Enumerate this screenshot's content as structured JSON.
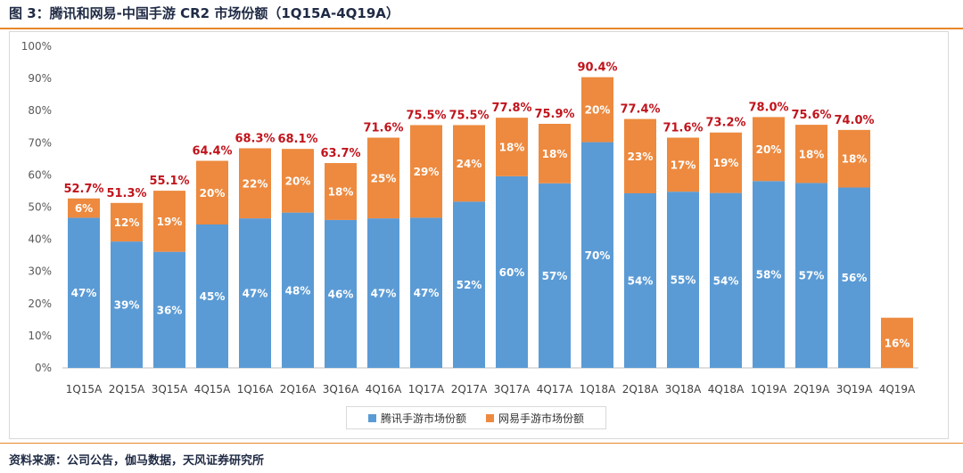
{
  "figure": {
    "title": "图 3：腾讯和网易-中国手游 CR2 市场份额（1Q15A-4Q19A）",
    "source": "资料来源：公司公告，伽马数据，天风证券研究所"
  },
  "colors": {
    "tencent": "#5b9bd5",
    "netease": "#ed8a3f",
    "total_label": "#c0141c",
    "accent_rule": "#e8872d"
  },
  "chart_data": {
    "type": "bar",
    "stacked": true,
    "title": "",
    "xlabel": "",
    "ylabel": "",
    "ylim": [
      0,
      100
    ],
    "ytick_step": 10,
    "ytick_format": "{v}%",
    "grid": false,
    "legend_position": "bottom",
    "categories": [
      "1Q15A",
      "2Q15A",
      "3Q15A",
      "4Q15A",
      "1Q16A",
      "2Q16A",
      "3Q16A",
      "4Q16A",
      "1Q17A",
      "2Q17A",
      "3Q17A",
      "4Q17A",
      "1Q18A",
      "2Q18A",
      "3Q18A",
      "4Q18A",
      "1Q19A",
      "2Q19A",
      "3Q19A",
      "4Q19A"
    ],
    "series": [
      {
        "name": "腾讯手游市场份额",
        "values": [
          46.7,
          39.3,
          36.1,
          44.6,
          46.5,
          48.3,
          46.0,
          46.5,
          46.7,
          51.7,
          59.6,
          57.4,
          70.2,
          54.3,
          54.8,
          54.4,
          58.1,
          57.5,
          56.1,
          0
        ],
        "labels": [
          "47%",
          "39%",
          "36%",
          "45%",
          "47%",
          "48%",
          "46%",
          "47%",
          "47%",
          "52%",
          "60%",
          "57%",
          "70%",
          "54%",
          "55%",
          "54%",
          "58%",
          "57%",
          "56%",
          ""
        ]
      },
      {
        "name": "网易手游市场份额",
        "values": [
          6.0,
          12.0,
          19.0,
          19.8,
          21.8,
          19.8,
          17.7,
          25.1,
          28.8,
          23.8,
          18.2,
          18.5,
          20.2,
          23.1,
          16.8,
          18.8,
          19.9,
          18.1,
          17.9,
          15.6
        ],
        "labels": [
          "6%",
          "12%",
          "19%",
          "20%",
          "22%",
          "20%",
          "18%",
          "25%",
          "29%",
          "24%",
          "18%",
          "18%",
          "20%",
          "23%",
          "17%",
          "19%",
          "20%",
          "18%",
          "18%",
          "16%"
        ]
      }
    ],
    "totals": [
      "52.7%",
      "51.3%",
      "55.1%",
      "64.4%",
      "68.3%",
      "68.1%",
      "63.7%",
      "71.6%",
      "75.5%",
      "75.5%",
      "77.8%",
      "75.9%",
      "90.4%",
      "77.4%",
      "71.6%",
      "73.2%",
      "78.0%",
      "75.6%",
      "74.0%",
      ""
    ]
  }
}
